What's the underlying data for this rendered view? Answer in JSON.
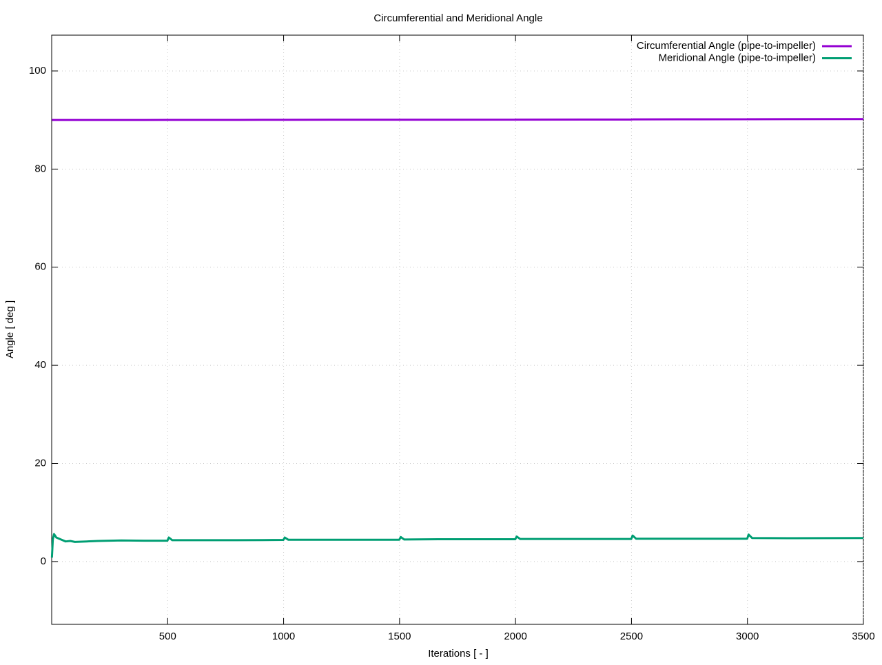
{
  "chart_data": {
    "type": "line",
    "title": "Circumferential and Meridional Angle",
    "x_label": "Iterations [ - ]",
    "y_label": "Angle [ deg ]",
    "x": [
      1,
      5,
      10,
      20,
      40,
      60,
      80,
      100,
      150,
      200,
      300,
      400,
      499,
      505,
      520,
      600,
      800,
      999,
      1005,
      1020,
      1200,
      1499,
      1505,
      1520,
      1700,
      1999,
      2005,
      2020,
      2300,
      2499,
      2505,
      2520,
      2700,
      2999,
      3005,
      3020,
      3200,
      3500
    ],
    "series": [
      {
        "name": "Circumferential Angle (pipe-to-impeller)",
        "color": "#9400d3",
        "values": [
          90.0,
          90.0,
          90.0,
          90.0,
          90.0,
          90.0,
          90.0,
          90.0,
          90.0,
          90.0,
          90.0,
          90.0,
          90.02,
          90.02,
          90.02,
          90.02,
          90.03,
          90.04,
          90.04,
          90.04,
          90.05,
          90.05,
          90.06,
          90.06,
          90.06,
          90.07,
          90.08,
          90.08,
          90.1,
          90.1,
          90.12,
          90.12,
          90.15,
          90.16,
          90.17,
          90.17,
          90.18,
          90.2
        ]
      },
      {
        "name": "Meridional Angle (pipe-to-impeller)",
        "color": "#009e73",
        "values": [
          0.8,
          4.5,
          5.6,
          4.9,
          4.5,
          4.1,
          4.2,
          4.0,
          4.1,
          4.2,
          4.3,
          4.25,
          4.25,
          4.9,
          4.35,
          4.35,
          4.35,
          4.4,
          4.9,
          4.45,
          4.45,
          4.45,
          5.0,
          4.5,
          4.55,
          4.55,
          5.1,
          4.6,
          4.6,
          4.6,
          5.3,
          4.65,
          4.65,
          4.65,
          5.5,
          4.8,
          4.75,
          4.8
        ]
      }
    ],
    "xlim": [
      0,
      3500
    ],
    "xticks": [
      500,
      1000,
      1500,
      2000,
      2500,
      3000,
      3500
    ],
    "ylim": [
      -12.8,
      107.3
    ],
    "yticks": [
      0,
      20,
      40,
      60,
      80,
      100
    ],
    "grid": true,
    "legend": "top-right"
  }
}
